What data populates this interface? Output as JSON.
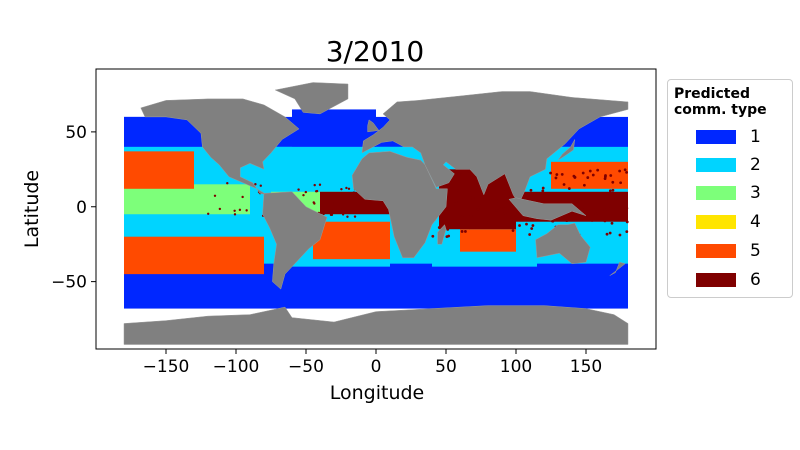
{
  "title": "3/2010",
  "xlabel": "Longitude",
  "ylabel": "Latitude",
  "legend": {
    "title_line1": "Predicted",
    "title_line2": "comm. type",
    "items": [
      {
        "label": "1",
        "color": "#0027ff"
      },
      {
        "label": "2",
        "color": "#00d4ff"
      },
      {
        "label": "3",
        "color": "#7dff7a"
      },
      {
        "label": "4",
        "color": "#ffe500"
      },
      {
        "label": "5",
        "color": "#ff4a00"
      },
      {
        "label": "6",
        "color": "#7f0000"
      }
    ]
  },
  "land_color": "#808080",
  "chart_data": {
    "type": "scatter",
    "title": "3/2010",
    "xlabel": "Longitude",
    "ylabel": "Latitude",
    "xlim": [
      -200,
      200
    ],
    "ylim": [
      -95,
      92
    ],
    "xticks": [
      -150,
      -100,
      -50,
      0,
      50,
      100,
      150
    ],
    "yticks": [
      -50,
      0,
      50
    ],
    "xtick_labels": [
      "−150",
      "−100",
      "−50",
      "0",
      "50",
      "100",
      "150"
    ],
    "ytick_labels": [
      "−50",
      "0",
      "50"
    ],
    "grid": false,
    "legend_position": "outside-right",
    "categories": [
      "1",
      "2",
      "3",
      "4",
      "5",
      "6"
    ],
    "regions": [
      {
        "type": "1",
        "lon": [
          -180,
          180
        ],
        "lat": [
          -65,
          -40
        ]
      },
      {
        "type": "1",
        "lon": [
          -180,
          -110
        ],
        "lat": [
          40,
          60
        ]
      },
      {
        "type": "1",
        "lon": [
          -60,
          0
        ],
        "lat": [
          40,
          65
        ]
      },
      {
        "type": "1",
        "lon": [
          140,
          180
        ],
        "lat": [
          38,
          58
        ]
      },
      {
        "type": "2",
        "lon": [
          -180,
          -120
        ],
        "lat": [
          -40,
          -20
        ]
      },
      {
        "type": "2",
        "lon": [
          -180,
          180
        ],
        "lat": [
          28,
          40
        ]
      },
      {
        "type": "2",
        "lon": [
          -60,
          10
        ],
        "lat": [
          -40,
          -25
        ]
      },
      {
        "type": "2",
        "lon": [
          40,
          115
        ],
        "lat": [
          -40,
          -25
        ]
      },
      {
        "type": "3",
        "lon": [
          -180,
          -90
        ],
        "lat": [
          -5,
          15
        ]
      },
      {
        "type": "3",
        "lon": [
          -75,
          -20
        ],
        "lat": [
          -5,
          10
        ]
      },
      {
        "type": "5",
        "lon": [
          -180,
          -130
        ],
        "lat": [
          12,
          37
        ]
      },
      {
        "type": "5",
        "lon": [
          -180,
          -80
        ],
        "lat": [
          -45,
          -20
        ]
      },
      {
        "type": "5",
        "lon": [
          -45,
          10
        ],
        "lat": [
          -35,
          -10
        ]
      },
      {
        "type": "5",
        "lon": [
          125,
          180
        ],
        "lat": [
          12,
          30
        ]
      },
      {
        "type": "5",
        "lon": [
          60,
          100
        ],
        "lat": [
          -30,
          -15
        ]
      },
      {
        "type": "6",
        "lon": [
          45,
          100
        ],
        "lat": [
          -15,
          25
        ]
      },
      {
        "type": "6",
        "lon": [
          -40,
          10
        ],
        "lat": [
          -5,
          10
        ]
      },
      {
        "type": "6",
        "lon": [
          100,
          180
        ],
        "lat": [
          -10,
          10
        ]
      }
    ]
  }
}
